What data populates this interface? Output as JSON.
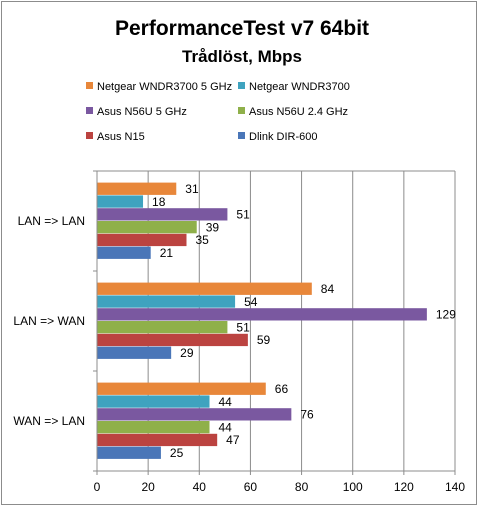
{
  "chart_data": {
    "type": "bar",
    "orientation": "horizontal",
    "title": "PerformanceTest  v7 64bit",
    "subtitle": "Trådlöst, Mbps",
    "categories": [
      "LAN => LAN",
      "LAN => WAN",
      "WAN => LAN"
    ],
    "series": [
      {
        "name": "Netgear WNDR3700 5 GHz",
        "color": "#e8873a",
        "values": [
          31,
          84,
          66
        ]
      },
      {
        "name": "Netgear WNDR3700",
        "color": "#3fa3bf",
        "values": [
          18,
          54,
          44
        ]
      },
      {
        "name": "Asus N56U 5 GHz",
        "color": "#7a58a0",
        "values": [
          51,
          129,
          76
        ]
      },
      {
        "name": "Asus N56U 2.4 GHz",
        "color": "#8fb04a",
        "values": [
          39,
          51,
          44
        ]
      },
      {
        "name": "Asus N15",
        "color": "#bb4340",
        "values": [
          35,
          59,
          47
        ]
      },
      {
        "name": "Dlink DIR-600",
        "color": "#4a76b8",
        "values": [
          21,
          29,
          25
        ]
      }
    ],
    "xlim": [
      0,
      140
    ],
    "xticks": [
      0,
      20,
      40,
      60,
      80,
      100,
      120,
      140
    ],
    "grid": true,
    "legend_position": "top"
  }
}
